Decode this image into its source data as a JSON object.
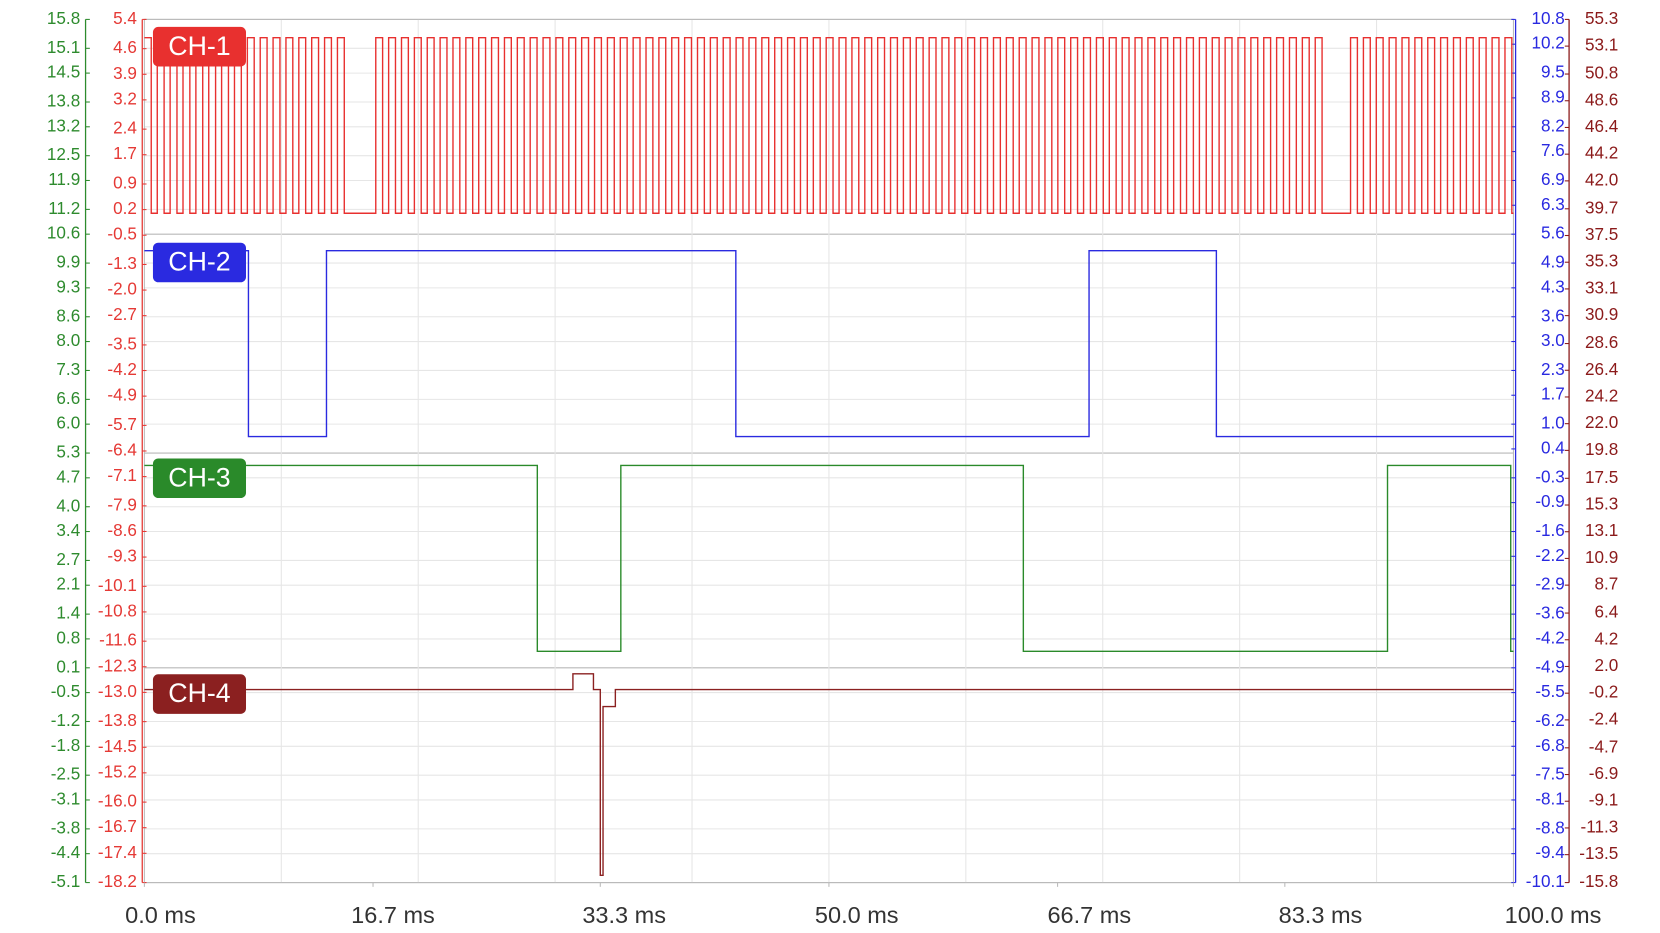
{
  "chart_data": {
    "type": "line",
    "xlim": [
      0,
      100
    ],
    "xticks": [
      {
        "value": 0,
        "label": "0.0 ms"
      },
      {
        "value": 16.7,
        "label": "16.7 ms"
      },
      {
        "value": 33.3,
        "label": "33.3 ms"
      },
      {
        "value": 50,
        "label": "50.0 ms"
      },
      {
        "value": 66.7,
        "label": "66.7 ms"
      },
      {
        "value": 83.3,
        "label": "83.3 ms"
      },
      {
        "value": 100,
        "label": "100.0 ms"
      }
    ],
    "xgrid": [
      10,
      20,
      30,
      40,
      50,
      60,
      70,
      80,
      90
    ],
    "grid": true,
    "axes": [
      {
        "color": "#2e8b2e",
        "ylim": [
          -5.1,
          15.8
        ],
        "yticks": [
          15.8,
          15.1,
          14.5,
          13.8,
          13.2,
          12.5,
          11.9,
          11.2,
          10.6,
          9.9,
          9.3,
          8.6,
          {
            "value": 8,
            "label": "8.0"
          },
          7.3,
          6.6,
          {
            "value": 6,
            "label": "6.0"
          },
          5.3,
          4.7,
          {
            "value": 4,
            "label": "4.0"
          },
          3.4,
          2.7,
          2.1,
          1.4,
          0.8,
          0.1,
          -0.5,
          -1.2,
          -1.8,
          -2.5,
          -3.1,
          -3.8,
          -4.4,
          -5.1
        ]
      },
      {
        "color": "#e53935",
        "ylim": [
          -18.2,
          5.4
        ],
        "yticks": [
          5.4,
          4.6,
          3.9,
          3.2,
          2.4,
          1.7,
          0.9,
          0.2,
          -0.5,
          -1.3,
          {
            "value": -2,
            "label": "-2.0"
          },
          -2.7,
          -3.5,
          -4.2,
          -4.9,
          -5.7,
          -6.4,
          -7.1,
          -7.9,
          -8.6,
          -9.3,
          -10.1,
          -10.8,
          -11.6,
          -12.3,
          {
            "value": -13,
            "label": "-13.0"
          },
          -13.8,
          -14.5,
          -15.2,
          {
            "value": -16,
            "label": "-16.0"
          },
          -16.7,
          -17.4,
          -18.2
        ]
      },
      {
        "color": "#2929e0",
        "ylim": [
          -10.1,
          10.8
        ],
        "yticks": [
          10.8,
          10.2,
          9.5,
          8.9,
          8.2,
          7.6,
          6.9,
          6.3,
          5.6,
          4.9,
          4.3,
          3.6,
          {
            "value": 3,
            "label": "3.0"
          },
          2.3,
          1.7,
          {
            "value": 1,
            "label": "1.0"
          },
          0.4,
          -0.3,
          -0.9,
          -1.6,
          -2.2,
          -2.9,
          -3.6,
          -4.2,
          -4.9,
          -5.5,
          -6.2,
          -6.8,
          -7.5,
          -8.1,
          -8.8,
          -9.4,
          -10.1
        ]
      },
      {
        "color": "#8b1a1a",
        "ylim": [
          -15.8,
          55.3
        ],
        "yticks": [
          55.3,
          53.1,
          50.8,
          48.6,
          46.4,
          44.2,
          {
            "value": 42,
            "label": "42.0"
          },
          39.7,
          37.5,
          35.3,
          33.1,
          30.9,
          28.6,
          26.4,
          24.2,
          {
            "value": 22,
            "label": "22.0"
          },
          19.8,
          17.5,
          15.3,
          13.1,
          10.9,
          8.7,
          6.4,
          4.2,
          {
            "value": 2,
            "label": "2.0"
          },
          -0.2,
          -2.4,
          -4.7,
          -6.9,
          -9.1,
          -11.3,
          -13.5,
          -15.8
        ]
      }
    ],
    "series": [
      {
        "name": "CH-1",
        "color": "#e8302f",
        "axis": 1,
        "x": [
          0,
          0.5,
          0.94,
          1.44,
          1.88,
          2.38,
          2.82,
          3.32,
          3.76,
          4.26,
          4.7,
          5.2,
          5.64,
          6.14,
          6.58,
          7.08,
          7.52,
          8.02,
          8.46,
          8.96,
          9.4,
          9.9,
          10.34,
          10.84,
          11.28,
          11.78,
          12.22,
          12.72,
          13.16,
          13.66,
          14.1,
          14.6,
          16.9,
          17.4,
          17.84,
          18.34,
          18.78,
          19.28,
          19.72,
          20.22,
          20.66,
          21.16,
          21.6,
          22.1,
          22.54,
          23.04,
          23.48,
          23.98,
          24.42,
          24.92,
          25.36,
          25.86,
          26.3,
          26.8,
          27.24,
          27.74,
          28.18,
          28.68,
          29.12,
          29.62,
          30.06,
          30.56,
          31,
          31.5,
          31.94,
          32.44,
          32.88,
          33.38,
          33.82,
          34.32,
          34.76,
          35.26,
          35.7,
          36.2,
          36.64,
          37.14,
          37.58,
          38.08,
          38.52,
          39.02,
          39.46,
          39.96,
          40.4,
          40.9,
          41.34,
          41.84,
          42.28,
          42.78,
          43.22,
          43.72,
          44.16,
          44.66,
          45.1,
          45.6,
          46.04,
          46.54,
          46.98,
          47.48,
          47.92,
          48.42,
          48.86,
          49.36,
          49.8,
          50.3,
          50.74,
          51.24,
          51.68,
          52.18,
          52.62,
          53.12,
          53.56,
          54.06,
          54.5,
          55,
          55.44,
          55.94,
          56.38,
          56.88,
          57.32,
          57.82,
          58.26,
          58.76,
          59.2,
          59.7,
          60.14,
          60.64,
          61.08,
          61.58,
          62.02,
          62.52,
          62.96,
          63.46,
          63.9,
          64.4,
          64.84,
          65.34,
          65.78,
          66.28,
          66.72,
          67.22,
          67.66,
          68.16,
          68.6,
          69.1,
          69.54,
          70.04,
          70.48,
          70.98,
          71.42,
          71.92,
          72.36,
          72.86,
          73.3,
          73.8,
          74.24,
          74.74,
          75.18,
          75.68,
          76.12,
          76.62,
          77.06,
          77.56,
          78,
          78.5,
          78.94,
          79.44,
          79.88,
          80.38,
          80.82,
          81.32,
          81.76,
          82.26,
          82.7,
          83.2,
          83.64,
          84.14,
          84.58,
          85.08,
          85.52,
          86.02,
          88.1,
          88.6,
          89.04,
          89.54,
          89.98,
          90.48,
          90.92,
          91.42,
          91.86,
          92.36,
          92.8,
          93.3,
          93.74,
          94.24,
          94.68,
          95.18,
          95.62,
          96.12,
          96.56,
          97.06,
          97.5,
          98,
          98.44,
          98.94,
          99.38,
          99.88,
          100
        ],
        "values": [
          4.9,
          0.1,
          4.9,
          0.1,
          4.9,
          0.1,
          4.9,
          0.1,
          4.9,
          0.1,
          4.9,
          0.1,
          4.9,
          0.1,
          4.9,
          0.1,
          4.9,
          0.1,
          4.9,
          0.1,
          4.9,
          0.1,
          4.9,
          0.1,
          4.9,
          0.1,
          4.9,
          0.1,
          4.9,
          0.1,
          4.9,
          0.1,
          4.9,
          0.1,
          4.9,
          0.1,
          4.9,
          0.1,
          4.9,
          0.1,
          4.9,
          0.1,
          4.9,
          0.1,
          4.9,
          0.1,
          4.9,
          0.1,
          4.9,
          0.1,
          4.9,
          0.1,
          4.9,
          0.1,
          4.9,
          0.1,
          4.9,
          0.1,
          4.9,
          0.1,
          4.9,
          0.1,
          4.9,
          0.1,
          4.9,
          0.1,
          4.9,
          0.1,
          4.9,
          0.1,
          4.9,
          0.1,
          4.9,
          0.1,
          4.9,
          0.1,
          4.9,
          0.1,
          4.9,
          0.1,
          4.9,
          0.1,
          4.9,
          0.1,
          4.9,
          0.1,
          4.9,
          0.1,
          4.9,
          0.1,
          4.9,
          0.1,
          4.9,
          0.1,
          4.9,
          0.1,
          4.9,
          0.1,
          4.9,
          0.1,
          4.9,
          0.1,
          4.9,
          0.1,
          4.9,
          0.1,
          4.9,
          0.1,
          4.9,
          0.1,
          4.9,
          0.1,
          4.9,
          0.1,
          4.9,
          0.1,
          4.9,
          0.1,
          4.9,
          0.1,
          4.9,
          0.1,
          4.9,
          0.1,
          4.9,
          0.1,
          4.9,
          0.1,
          4.9,
          0.1,
          4.9,
          0.1,
          4.9,
          0.1,
          4.9,
          0.1,
          4.9,
          0.1,
          4.9,
          0.1,
          4.9,
          0.1,
          4.9,
          0.1,
          4.9,
          0.1,
          4.9,
          0.1,
          4.9,
          0.1,
          4.9,
          0.1,
          4.9,
          0.1,
          4.9,
          0.1,
          4.9,
          0.1,
          4.9,
          0.1,
          4.9,
          0.1,
          4.9,
          0.1,
          4.9,
          0.1,
          4.9,
          0.1,
          4.9,
          0.1,
          4.9,
          0.1,
          4.9,
          0.1,
          4.9,
          0.1,
          4.9,
          0.1,
          4.9,
          0.1,
          4.9,
          0.1,
          4.9,
          0.1,
          4.9,
          0.1,
          4.9,
          0.1,
          4.9,
          0.1,
          4.9,
          0.1,
          4.9,
          0.1,
          4.9,
          0.1,
          4.9,
          0.1,
          4.9,
          0.1,
          4.9,
          0.1,
          4.9,
          0.1,
          4.9,
          0.1,
          0.1
        ]
      },
      {
        "name": "CH-2",
        "color": "#2a2ae0",
        "axis": 2,
        "x": [
          0,
          7.6,
          13.3,
          43.2,
          69.0,
          78.3,
          100
        ],
        "values": [
          5.2,
          0.7,
          5.2,
          0.7,
          5.2,
          0.7,
          0.7
        ]
      },
      {
        "name": "CH-3",
        "color": "#2a8a2a",
        "axis": 0,
        "x": [
          0,
          28.7,
          34.8,
          64.2,
          90.8,
          99.8,
          100
        ],
        "values": [
          5.0,
          0.5,
          5.0,
          0.5,
          5.0,
          0.5,
          0.5
        ]
      },
      {
        "name": "CH-4",
        "color": "#8b2020",
        "axis": 3,
        "x": [
          0,
          31.3,
          32.8,
          33.3,
          33.5,
          34.4,
          100
        ],
        "values": [
          0.1,
          1.4,
          0.1,
          -15.2,
          -1.3,
          0.1,
          0.1
        ]
      }
    ]
  }
}
